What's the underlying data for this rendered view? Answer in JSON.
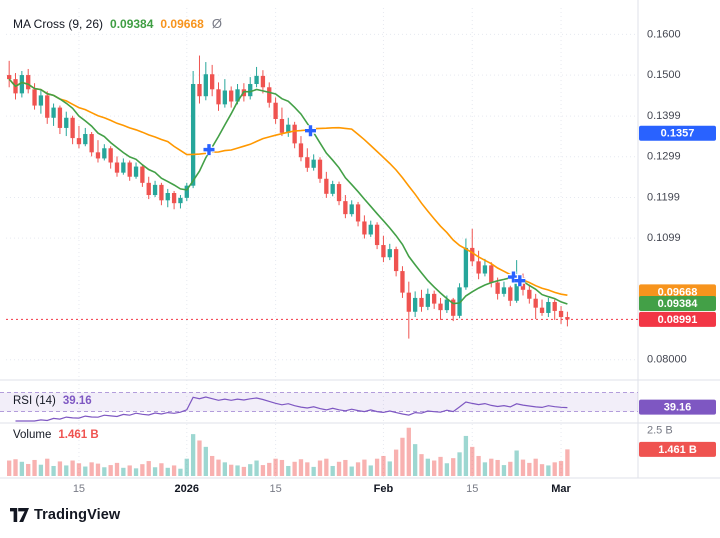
{
  "legend": {
    "title": "MA Cross (9, 26)",
    "ma_fast_value": "0.09384",
    "ma_slow_value": "0.09668",
    "hide_icon": "Ø"
  },
  "rsi": {
    "label": "RSI (14)",
    "value": "39.16"
  },
  "volume": {
    "label": "Volume",
    "value": "1.461 B",
    "axis_top_label": "2.5 B",
    "badge": "1.461 B"
  },
  "footer": {
    "logo_text": "TradingView"
  },
  "colors": {
    "up": "#26a69a",
    "down": "#ef5350",
    "ma_fast": "#43a047",
    "ma_slow": "#ff9800",
    "cross_marker": "#2962ff",
    "rsi_line": "#7e57c2",
    "rsi_badge": "#7e57c2",
    "last_price": "#f23645",
    "blue_badge": "#2962ff",
    "vol_up": "rgba(38,166,154,0.45)",
    "vol_down": "rgba(239,83,80,0.45)"
  },
  "price_axis": {
    "labels": [
      {
        "text": "0.1600",
        "price": 0.16
      },
      {
        "text": "0.1500",
        "price": 0.15
      },
      {
        "text": "0.1399",
        "price": 0.1399
      },
      {
        "text": "0.1299",
        "price": 0.1299
      },
      {
        "text": "0.1199",
        "price": 0.1199
      },
      {
        "text": "0.1099",
        "price": 0.1099
      },
      {
        "text": "0.08000",
        "price": 0.08
      }
    ],
    "badges": [
      {
        "text": "0.1357",
        "price": 0.1357,
        "color": "#2962ff"
      },
      {
        "text": "0.09668",
        "price": 0.09668,
        "color": "#f7941d"
      },
      {
        "text": "0.09384",
        "price": 0.09384,
        "color": "#43a047"
      },
      {
        "text": "0.08991",
        "price": 0.08991,
        "color": "#f23645"
      }
    ]
  },
  "time_axis": {
    "ticks": [
      {
        "label": "15",
        "index": 11,
        "emphasis": false
      },
      {
        "label": "2026",
        "index": 28,
        "emphasis": true
      },
      {
        "label": "15",
        "index": 42,
        "emphasis": false
      },
      {
        "label": "Feb",
        "index": 59,
        "emphasis": true
      },
      {
        "label": "15",
        "index": 73,
        "emphasis": false
      },
      {
        "label": "Mar",
        "index": 87,
        "emphasis": true
      }
    ]
  },
  "chart_data": {
    "type": "candlestick",
    "title": "MA Cross (9, 26)",
    "panes": [
      "price",
      "rsi",
      "volume"
    ],
    "price_range": [
      0.076,
      0.166
    ],
    "volume_scale_max": 2.8,
    "rsi_period": 14,
    "rsi_value": 39.16,
    "rsi_bands": [
      30,
      70
    ],
    "last_price": 0.08991,
    "ma_fast_period": 9,
    "ma_slow_period": 26,
    "candles_format": [
      "open",
      "high",
      "low",
      "close",
      "volume_billions"
    ],
    "candles": [
      [
        0.15,
        0.1535,
        0.147,
        0.149,
        0.85
      ],
      [
        0.149,
        0.1505,
        0.144,
        0.1455,
        0.92
      ],
      [
        0.1455,
        0.151,
        0.1445,
        0.15,
        0.78
      ],
      [
        0.15,
        0.1515,
        0.1455,
        0.1465,
        0.66
      ],
      [
        0.1465,
        0.148,
        0.1415,
        0.1425,
        0.88
      ],
      [
        0.1425,
        0.1465,
        0.1405,
        0.145,
        0.62
      ],
      [
        0.145,
        0.146,
        0.138,
        0.1395,
        0.95
      ],
      [
        0.1395,
        0.143,
        0.1375,
        0.142,
        0.55
      ],
      [
        0.142,
        0.1425,
        0.1355,
        0.137,
        0.8
      ],
      [
        0.137,
        0.141,
        0.135,
        0.1395,
        0.58
      ],
      [
        0.1395,
        0.14,
        0.133,
        0.1345,
        0.85
      ],
      [
        0.1345,
        0.1375,
        0.132,
        0.133,
        0.7
      ],
      [
        0.133,
        0.137,
        0.1325,
        0.1355,
        0.52
      ],
      [
        0.1355,
        0.136,
        0.13,
        0.131,
        0.75
      ],
      [
        0.131,
        0.134,
        0.1285,
        0.1295,
        0.68
      ],
      [
        0.1295,
        0.133,
        0.129,
        0.132,
        0.48
      ],
      [
        0.132,
        0.1325,
        0.127,
        0.1285,
        0.6
      ],
      [
        0.1285,
        0.13,
        0.125,
        0.126,
        0.72
      ],
      [
        0.126,
        0.1295,
        0.1255,
        0.1285,
        0.45
      ],
      [
        0.1285,
        0.129,
        0.124,
        0.125,
        0.58
      ],
      [
        0.125,
        0.1285,
        0.1245,
        0.1275,
        0.42
      ],
      [
        0.1275,
        0.128,
        0.1225,
        0.1235,
        0.65
      ],
      [
        0.1235,
        0.125,
        0.1195,
        0.1205,
        0.82
      ],
      [
        0.1205,
        0.124,
        0.12,
        0.123,
        0.48
      ],
      [
        0.123,
        0.1235,
        0.118,
        0.1192,
        0.7
      ],
      [
        0.1192,
        0.122,
        0.1175,
        0.121,
        0.45
      ],
      [
        0.121,
        0.1215,
        0.117,
        0.1185,
        0.58
      ],
      [
        0.1185,
        0.1205,
        0.1172,
        0.1198,
        0.4
      ],
      [
        0.1198,
        0.1235,
        0.119,
        0.1228,
        0.95
      ],
      [
        0.1228,
        0.151,
        0.1222,
        0.1478,
        2.3
      ],
      [
        0.1478,
        0.1548,
        0.143,
        0.1448,
        1.95
      ],
      [
        0.1448,
        0.1532,
        0.1438,
        0.1502,
        1.6
      ],
      [
        0.1502,
        0.1525,
        0.1448,
        0.1465,
        1.1
      ],
      [
        0.1465,
        0.1482,
        0.1412,
        0.1428,
        0.9
      ],
      [
        0.1428,
        0.149,
        0.142,
        0.1462,
        0.75
      ],
      [
        0.1462,
        0.1472,
        0.142,
        0.1435,
        0.62
      ],
      [
        0.1435,
        0.1478,
        0.1428,
        0.1465,
        0.58
      ],
      [
        0.1465,
        0.148,
        0.1435,
        0.1448,
        0.5
      ],
      [
        0.1448,
        0.1495,
        0.144,
        0.1478,
        0.65
      ],
      [
        0.1478,
        0.152,
        0.147,
        0.1498,
        0.85
      ],
      [
        0.1498,
        0.1512,
        0.1455,
        0.147,
        0.6
      ],
      [
        0.147,
        0.1482,
        0.142,
        0.1432,
        0.72
      ],
      [
        0.1432,
        0.1445,
        0.138,
        0.1392,
        0.95
      ],
      [
        0.1392,
        0.142,
        0.135,
        0.1358,
        0.88
      ],
      [
        0.1358,
        0.1395,
        0.1348,
        0.1378,
        0.55
      ],
      [
        0.1378,
        0.1385,
        0.132,
        0.1332,
        0.78
      ],
      [
        0.1332,
        0.135,
        0.1288,
        0.1298,
        0.92
      ],
      [
        0.1298,
        0.132,
        0.1262,
        0.1272,
        0.75
      ],
      [
        0.1272,
        0.1305,
        0.1265,
        0.1292,
        0.5
      ],
      [
        0.1292,
        0.1298,
        0.1235,
        0.1245,
        0.85
      ],
      [
        0.1245,
        0.1262,
        0.1198,
        0.1208,
        0.95
      ],
      [
        0.1208,
        0.124,
        0.1202,
        0.1232,
        0.55
      ],
      [
        0.1232,
        0.1238,
        0.118,
        0.119,
        0.78
      ],
      [
        0.119,
        0.1205,
        0.1148,
        0.1158,
        0.88
      ],
      [
        0.1158,
        0.1192,
        0.1152,
        0.1182,
        0.52
      ],
      [
        0.1182,
        0.1188,
        0.1128,
        0.114,
        0.75
      ],
      [
        0.114,
        0.1155,
        0.1098,
        0.1108,
        0.9
      ],
      [
        0.1108,
        0.1142,
        0.1102,
        0.1132,
        0.58
      ],
      [
        0.1132,
        0.1138,
        0.1072,
        0.1082,
        0.95
      ],
      [
        0.1082,
        0.1105,
        0.104,
        0.1052,
        1.1
      ],
      [
        0.1052,
        0.1085,
        0.1045,
        0.1072,
        0.8
      ],
      [
        0.1072,
        0.1078,
        0.1005,
        0.1018,
        1.45
      ],
      [
        0.1018,
        0.103,
        0.0952,
        0.0965,
        2.1
      ],
      [
        0.0965,
        0.0992,
        0.0852,
        0.0918,
        2.65
      ],
      [
        0.0918,
        0.0968,
        0.0905,
        0.0952,
        1.75
      ],
      [
        0.0952,
        0.0972,
        0.0918,
        0.093,
        1.2
      ],
      [
        0.093,
        0.0975,
        0.0922,
        0.0962,
        0.95
      ],
      [
        0.0962,
        0.097,
        0.0925,
        0.0938,
        0.85
      ],
      [
        0.0938,
        0.0952,
        0.0898,
        0.0922,
        1.05
      ],
      [
        0.0922,
        0.0958,
        0.0915,
        0.0948,
        0.7
      ],
      [
        0.0948,
        0.0952,
        0.0895,
        0.0908,
        0.98
      ],
      [
        0.0908,
        0.0988,
        0.0902,
        0.0978,
        1.3
      ],
      [
        0.0978,
        0.1098,
        0.0972,
        0.1075,
        2.2
      ],
      [
        0.1075,
        0.1122,
        0.103,
        0.1042,
        1.6
      ],
      [
        0.1042,
        0.1068,
        0.0998,
        0.1012,
        1.1
      ],
      [
        0.1012,
        0.1048,
        0.1005,
        0.1032,
        0.75
      ],
      [
        0.1032,
        0.104,
        0.0978,
        0.099,
        0.95
      ],
      [
        0.099,
        0.1002,
        0.0948,
        0.0962,
        0.88
      ],
      [
        0.0962,
        0.0992,
        0.0955,
        0.0978,
        0.6
      ],
      [
        0.0978,
        0.0982,
        0.0932,
        0.0945,
        0.78
      ],
      [
        0.0945,
        0.1045,
        0.094,
        0.1002,
        1.4
      ],
      [
        0.1002,
        0.1012,
        0.0958,
        0.0972,
        0.9
      ],
      [
        0.0972,
        0.0985,
        0.0938,
        0.095,
        0.72
      ],
      [
        0.095,
        0.0962,
        0.09,
        0.0928,
        0.95
      ],
      [
        0.0928,
        0.0948,
        0.0908,
        0.0915,
        0.65
      ],
      [
        0.0915,
        0.0952,
        0.0905,
        0.0942,
        0.58
      ],
      [
        0.0942,
        0.0948,
        0.0898,
        0.092,
        0.75
      ],
      [
        0.092,
        0.0932,
        0.0888,
        0.0905,
        0.82
      ],
      [
        0.0905,
        0.0918,
        0.0882,
        0.0899,
        1.461
      ]
    ]
  }
}
